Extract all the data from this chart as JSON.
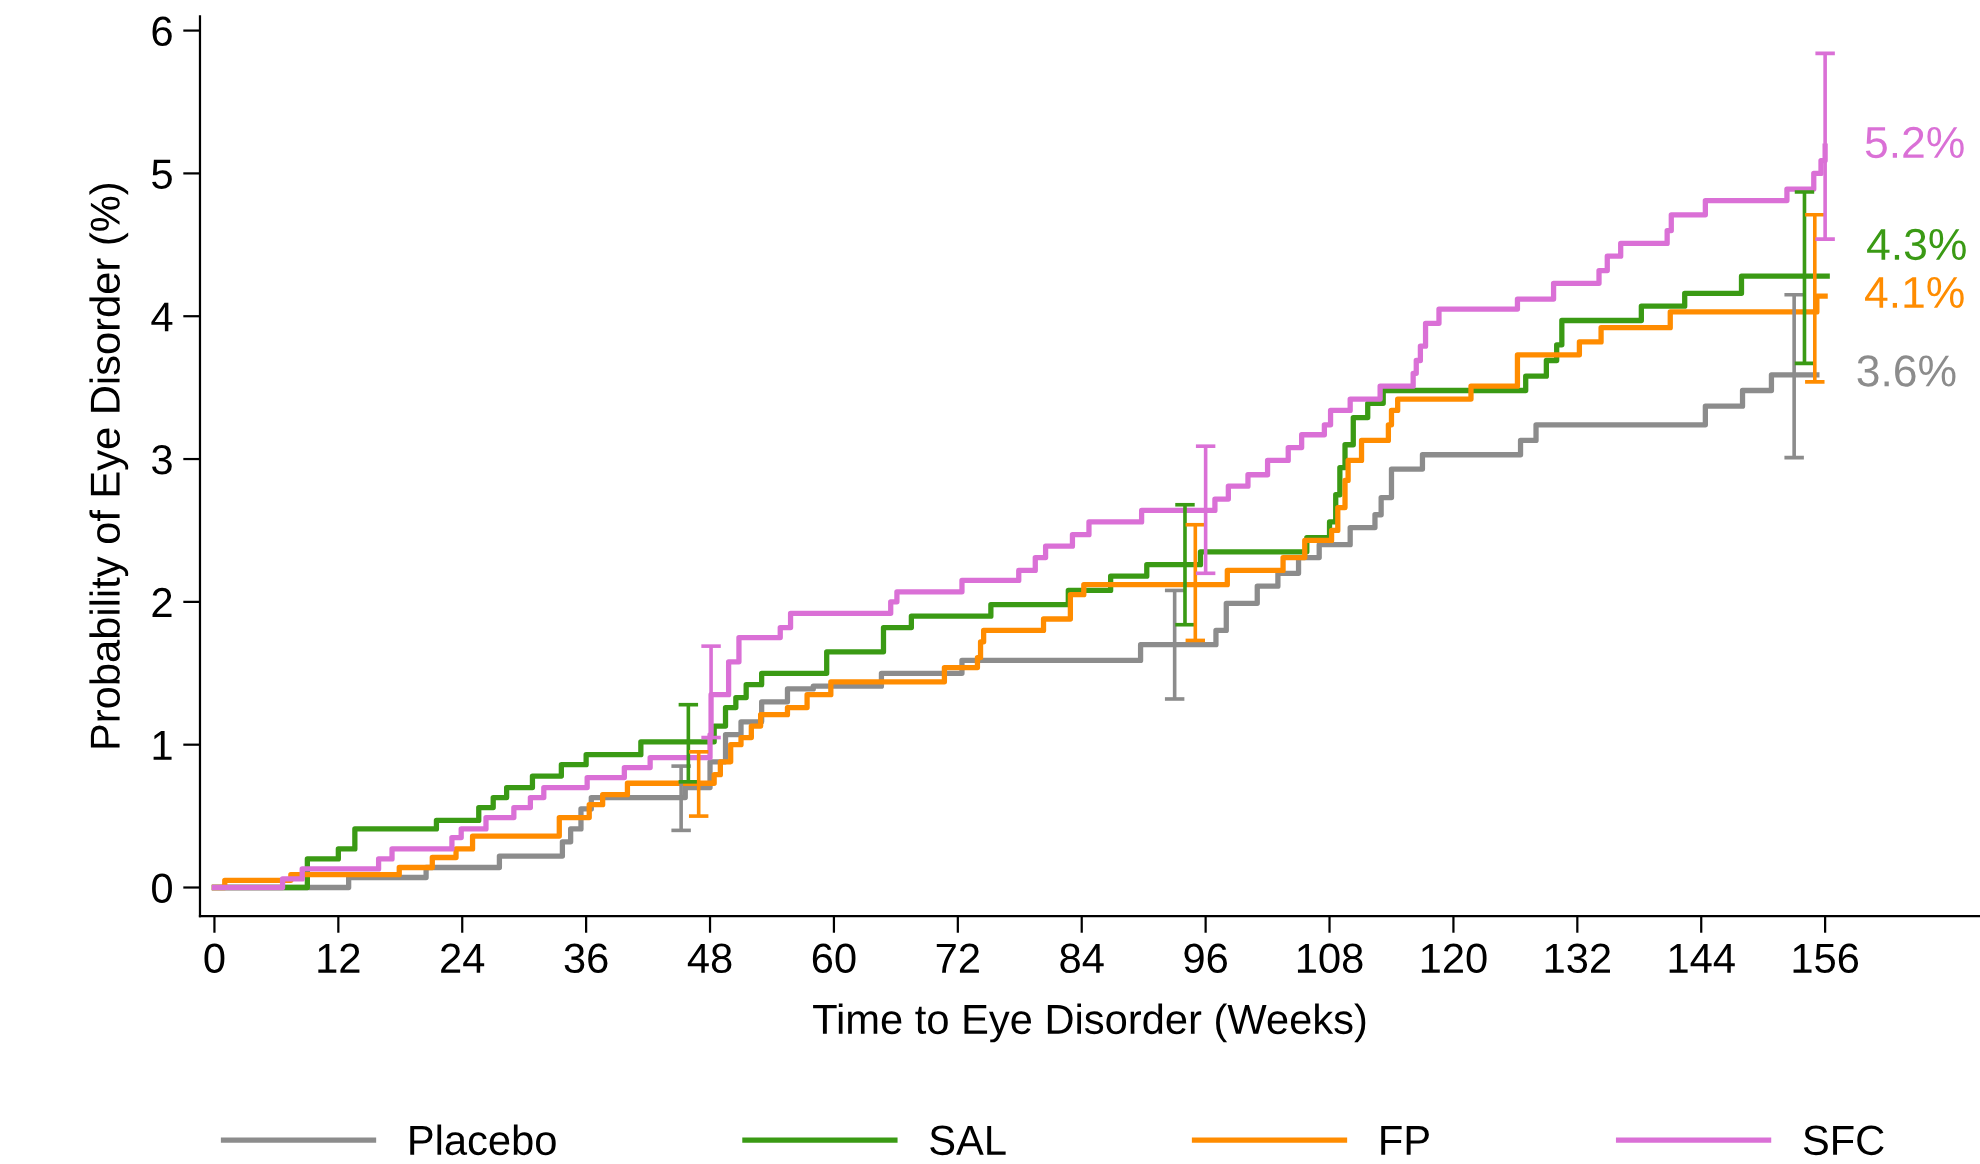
{
  "chart_data": {
    "type": "step",
    "xlabel": "Time to Eye Disorder (Weeks)",
    "ylabel": "Probability of Eye Disorder (%)",
    "xlim": [
      -1.4,
      171
    ],
    "ylim": [
      -0.2,
      6.1
    ],
    "xticks": [
      0,
      12,
      24,
      36,
      48,
      60,
      72,
      84,
      96,
      108,
      120,
      132,
      144,
      156
    ],
    "yticks": [
      0,
      1,
      2,
      3,
      4,
      5,
      6
    ],
    "legend": "bottom",
    "grid": false,
    "marker": "none",
    "line_style": "solid",
    "series": [
      {
        "name": "Placebo",
        "color": "#8c8c8c",
        "x": [
          0,
          13,
          20.5,
          27.6,
          33.7,
          34.5,
          35.5,
          36.5,
          45.2,
          45.6,
          48,
          49.5,
          51,
          53,
          55.5,
          58,
          64.6,
          72.4,
          89.7,
          93,
          97,
          98,
          101,
          103,
          105,
          107,
          110,
          112.4,
          113,
          114,
          117,
          126.5,
          128,
          144.4,
          148,
          150.8,
          153,
          155.2
        ],
        "values": [
          0,
          0.07,
          0.14,
          0.22,
          0.32,
          0.41,
          0.55,
          0.63,
          0.63,
          0.7,
          0.88,
          1.07,
          1.16,
          1.3,
          1.39,
          1.41,
          1.5,
          1.59,
          1.7,
          1.7,
          1.8,
          1.99,
          2.11,
          2.2,
          2.31,
          2.4,
          2.52,
          2.61,
          2.73,
          2.93,
          3.03,
          3.13,
          3.24,
          3.37,
          3.48,
          3.59,
          3.59,
          3.59
        ],
        "errors": [
          null,
          null,
          null,
          null,
          null,
          null,
          null,
          null,
          [
            0.4,
            0.85
          ],
          null,
          null,
          null,
          null,
          null,
          null,
          null,
          null,
          null,
          null,
          [
            1.32,
            2.08
          ],
          null,
          null,
          null,
          null,
          null,
          null,
          null,
          null,
          null,
          null,
          null,
          null,
          null,
          null,
          null,
          null,
          [
            3.01,
            4.15
          ],
          null
        ],
        "value_labels": [
          null,
          null,
          null,
          null,
          null,
          null,
          null,
          null,
          null,
          null,
          null,
          null,
          null,
          null,
          null,
          null,
          null,
          null,
          null,
          null,
          null,
          null,
          null,
          null,
          null,
          null,
          null,
          null,
          null,
          null,
          null,
          null,
          null,
          null,
          null,
          null,
          null,
          "3.6%"
        ]
      },
      {
        "name": "SAL",
        "color": "#3a9a14",
        "x": [
          0,
          9,
          12,
          13.6,
          21.5,
          25.6,
          27,
          28.3,
          30.8,
          33.6,
          36,
          41.3,
          45.9,
          48.4,
          49.5,
          50.5,
          51.5,
          53,
          59.3,
          64.8,
          67.5,
          75.2,
          82.7,
          86.8,
          90.3,
          94,
          95.5,
          105.8,
          108,
          108.6,
          109,
          109.5,
          110.3,
          111.7,
          113.2,
          127,
          129,
          130,
          130.5,
          138.2,
          142.4,
          147.9,
          154,
          156.2
        ],
        "values": [
          0,
          0.2,
          0.27,
          0.41,
          0.47,
          0.56,
          0.63,
          0.7,
          0.78,
          0.86,
          0.93,
          1.02,
          1.02,
          1.13,
          1.26,
          1.33,
          1.42,
          1.5,
          1.65,
          1.82,
          1.9,
          1.98,
          2.08,
          2.18,
          2.26,
          2.26,
          2.35,
          2.45,
          2.56,
          2.75,
          2.94,
          3.1,
          3.29,
          3.39,
          3.48,
          3.58,
          3.69,
          3.8,
          3.97,
          4.07,
          4.16,
          4.28,
          4.28,
          4.28
        ],
        "errors": [
          null,
          null,
          null,
          null,
          null,
          null,
          null,
          null,
          null,
          null,
          null,
          null,
          [
            0.74,
            1.28
          ],
          null,
          null,
          null,
          null,
          null,
          null,
          null,
          null,
          null,
          null,
          null,
          null,
          [
            1.84,
            2.68
          ],
          null,
          null,
          null,
          null,
          null,
          null,
          null,
          null,
          null,
          null,
          null,
          null,
          null,
          null,
          null,
          null,
          [
            3.67,
            4.87
          ],
          null
        ],
        "value_labels": [
          null,
          null,
          null,
          null,
          null,
          null,
          null,
          null,
          null,
          null,
          null,
          null,
          null,
          null,
          null,
          null,
          null,
          null,
          null,
          null,
          null,
          null,
          null,
          null,
          null,
          null,
          null,
          null,
          null,
          null,
          null,
          null,
          null,
          null,
          null,
          null,
          null,
          null,
          null,
          null,
          null,
          null,
          null,
          "4.3%"
        ]
      },
      {
        "name": "FP",
        "color": "#ff8c00",
        "x": [
          0,
          1,
          7.4,
          17.9,
          21.1,
          23.4,
          25,
          33.4,
          36.3,
          37.6,
          40,
          46.9,
          48.4,
          49,
          50,
          51,
          52,
          52.9,
          55.5,
          57.4,
          59.7,
          70.7,
          73.9,
          74.2,
          74.5,
          80.3,
          82.9,
          84.2,
          95,
          98.1,
          103.5,
          105.6,
          108.2,
          108.8,
          109.5,
          109.8,
          111.1,
          113.7,
          114,
          114.6,
          121.7,
          126.2,
          132.2,
          134.3,
          141,
          155,
          155.2,
          156
        ],
        "values": [
          0,
          0.05,
          0.09,
          0.14,
          0.21,
          0.27,
          0.36,
          0.49,
          0.58,
          0.65,
          0.73,
          0.73,
          0.79,
          0.88,
          1.0,
          1.05,
          1.13,
          1.21,
          1.26,
          1.35,
          1.44,
          1.54,
          1.61,
          1.72,
          1.8,
          1.88,
          2.05,
          2.12,
          2.12,
          2.22,
          2.31,
          2.43,
          2.5,
          2.66,
          2.85,
          2.99,
          3.13,
          3.24,
          3.34,
          3.42,
          3.51,
          3.73,
          3.82,
          3.92,
          4.03,
          4.03,
          4.14,
          4.14
        ],
        "errors": [
          null,
          null,
          null,
          null,
          null,
          null,
          null,
          null,
          null,
          null,
          null,
          [
            0.5,
            0.95
          ],
          null,
          null,
          null,
          null,
          null,
          null,
          null,
          null,
          null,
          null,
          null,
          null,
          null,
          null,
          null,
          null,
          [
            1.73,
            2.54
          ],
          null,
          null,
          null,
          null,
          null,
          null,
          null,
          null,
          null,
          null,
          null,
          null,
          null,
          null,
          null,
          null,
          [
            3.54,
            4.71
          ],
          null,
          null
        ],
        "value_labels": [
          null,
          null,
          null,
          null,
          null,
          null,
          null,
          null,
          null,
          null,
          null,
          null,
          null,
          null,
          null,
          null,
          null,
          null,
          null,
          null,
          null,
          null,
          null,
          null,
          null,
          null,
          null,
          null,
          null,
          null,
          null,
          null,
          null,
          null,
          null,
          null,
          null,
          null,
          null,
          null,
          null,
          null,
          null,
          null,
          null,
          null,
          null,
          "4.1%"
        ]
      },
      {
        "name": "SFC",
        "color": "#da70d6",
        "x": [
          0,
          6.6,
          8.5,
          15.9,
          17.2,
          23,
          23.9,
          26.3,
          29,
          30.6,
          31.9,
          36.1,
          39.7,
          42.2,
          48,
          48.1,
          49.8,
          50.8,
          54.8,
          55.8,
          65.5,
          66.1,
          72.4,
          77.9,
          79.5,
          80.5,
          83.1,
          84.7,
          89.8,
          96,
          96.9,
          98.2,
          100.1,
          102,
          104,
          105.3,
          107.5,
          108.1,
          110,
          112.9,
          116.1,
          116.4,
          116.8,
          117.3,
          118.6,
          126.2,
          129.7,
          134.1,
          134.9,
          136.2,
          140.7,
          141.1,
          144.4,
          152.3,
          154.9,
          155.6,
          156
        ],
        "values": [
          0,
          0.06,
          0.13,
          0.2,
          0.27,
          0.35,
          0.41,
          0.49,
          0.56,
          0.63,
          0.7,
          0.77,
          0.84,
          0.91,
          1.07,
          1.35,
          1.58,
          1.75,
          1.82,
          1.92,
          2.0,
          2.07,
          2.15,
          2.22,
          2.31,
          2.39,
          2.47,
          2.56,
          2.64,
          2.64,
          2.72,
          2.81,
          2.89,
          2.99,
          3.08,
          3.17,
          3.24,
          3.34,
          3.42,
          3.51,
          3.6,
          3.69,
          3.79,
          3.95,
          4.05,
          4.12,
          4.23,
          4.32,
          4.42,
          4.51,
          4.6,
          4.71,
          4.81,
          4.89,
          5.0,
          5.09,
          5.19
        ],
        "errors": [
          null,
          null,
          null,
          null,
          null,
          null,
          null,
          null,
          null,
          null,
          null,
          null,
          null,
          null,
          null,
          [
            1.05,
            1.69
          ],
          null,
          null,
          null,
          null,
          null,
          null,
          null,
          null,
          null,
          null,
          null,
          null,
          null,
          [
            2.2,
            3.09
          ],
          null,
          null,
          null,
          null,
          null,
          null,
          null,
          null,
          null,
          null,
          null,
          null,
          null,
          null,
          null,
          null,
          null,
          null,
          null,
          null,
          null,
          null,
          null,
          null,
          null,
          null,
          [
            4.54,
            5.84
          ]
        ],
        "value_labels": [
          null,
          null,
          null,
          null,
          null,
          null,
          null,
          null,
          null,
          null,
          null,
          null,
          null,
          null,
          null,
          null,
          null,
          null,
          null,
          null,
          null,
          null,
          null,
          null,
          null,
          null,
          null,
          null,
          null,
          null,
          null,
          null,
          null,
          null,
          null,
          null,
          null,
          null,
          null,
          null,
          null,
          null,
          null,
          null,
          null,
          null,
          null,
          null,
          null,
          null,
          null,
          null,
          null,
          null,
          null,
          null,
          "5.2%"
        ]
      }
    ]
  }
}
